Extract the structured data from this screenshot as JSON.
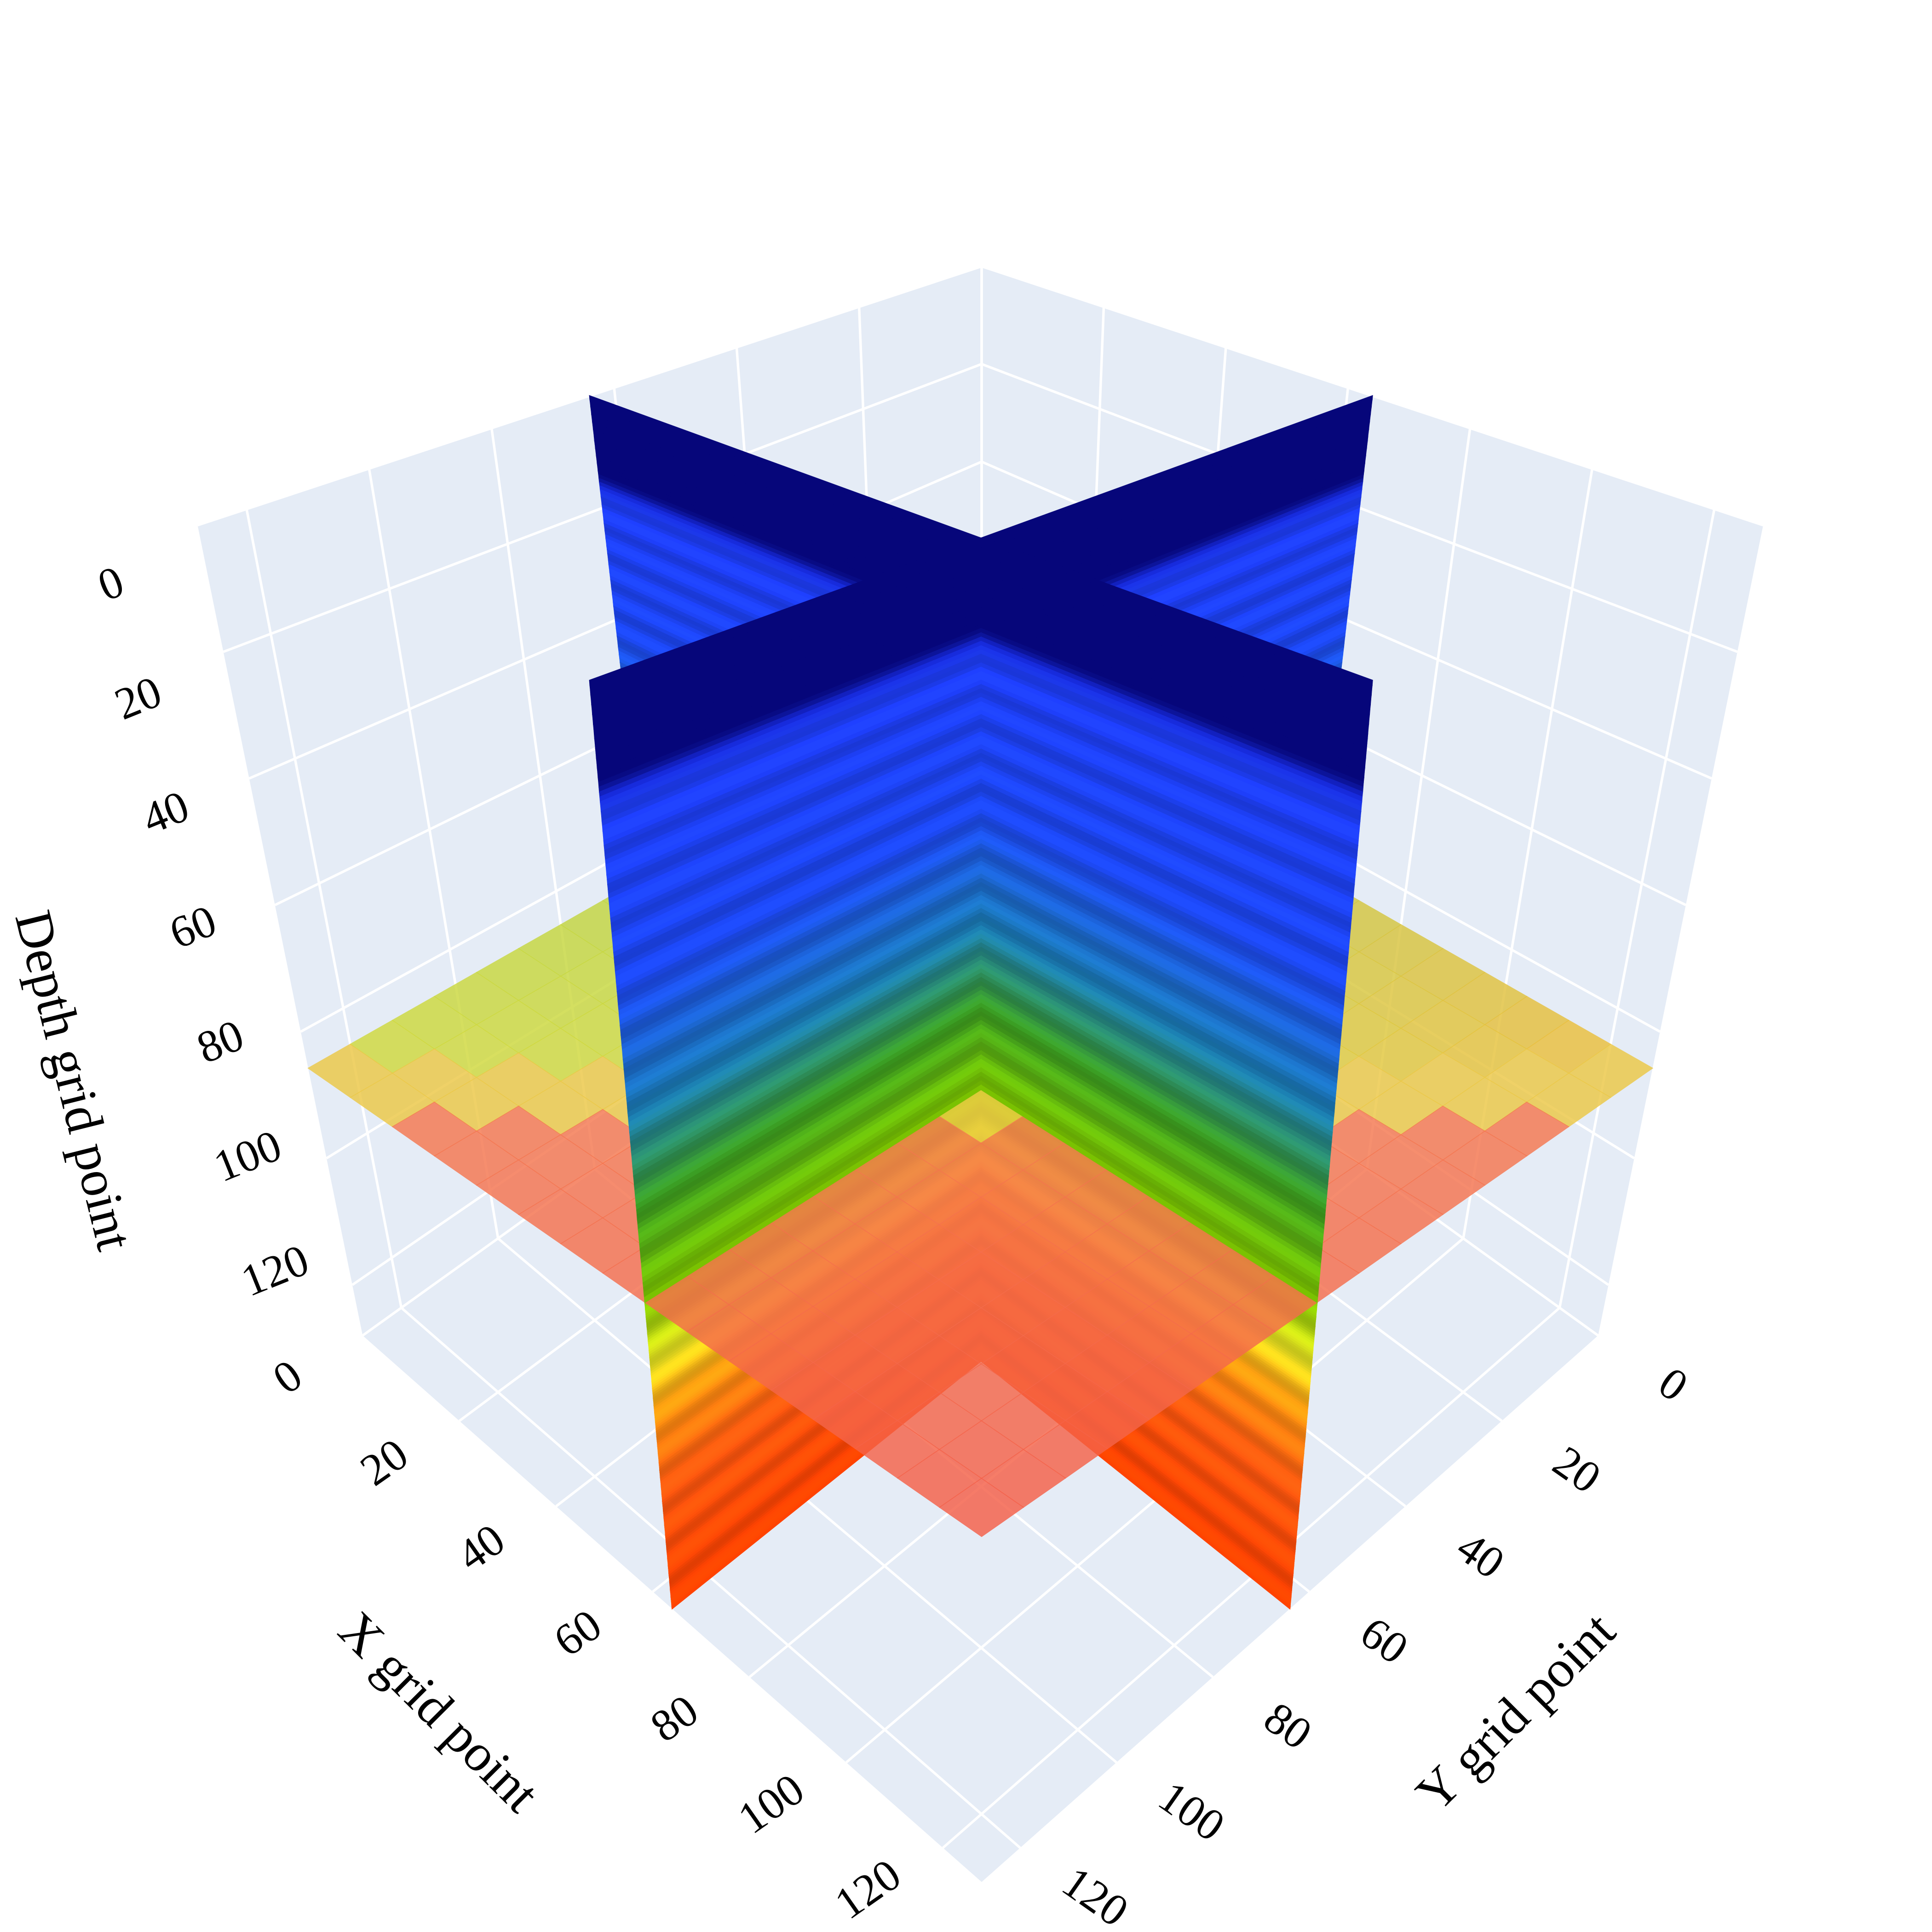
{
  "chart_data": {
    "type": "slice3d",
    "xaxis_title": "X grid point",
    "yaxis_title": "Y grid point",
    "zaxis_title": "Depth grid point",
    "xlim": [
      0,
      128
    ],
    "ylim": [
      0,
      128
    ],
    "zlim": [
      0,
      128
    ],
    "zreversed": true,
    "xticks": [
      0,
      20,
      40,
      60,
      80,
      100,
      120
    ],
    "yticks": [
      0,
      20,
      40,
      60,
      80,
      100,
      120
    ],
    "zticks": [
      0,
      20,
      40,
      60,
      80,
      100,
      120
    ],
    "grid": true
  }
}
